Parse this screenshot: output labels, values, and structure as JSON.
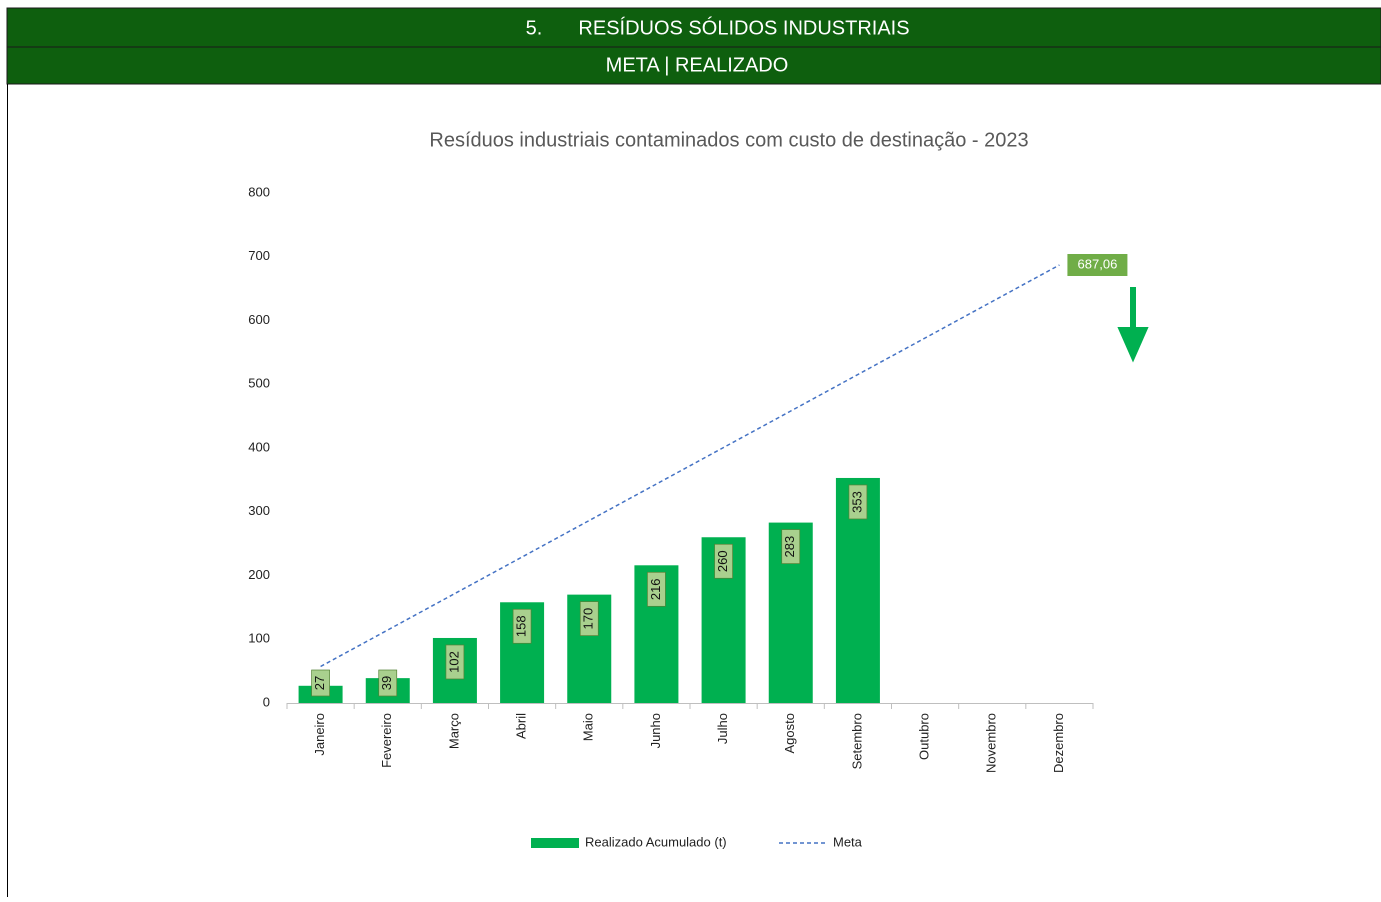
{
  "header": {
    "number": "5.",
    "title": "RESÍDUOS SÓLIDOS INDUSTRIAIS",
    "subtitle": "META | REALIZADO"
  },
  "chart_data": {
    "type": "bar",
    "title": "Resíduos industriais contaminados com custo de destinação - 2023",
    "categories": [
      "Janeiro",
      "Fevereiro",
      "Março",
      "Abril",
      "Maio",
      "Junho",
      "Julho",
      "Agosto",
      "Setembro",
      "Outubro",
      "Novembro",
      "Dezembro"
    ],
    "series": [
      {
        "name": "Realizado Acumulado (t)",
        "type": "bar",
        "color": "#00b050",
        "values": [
          27,
          39,
          102,
          158,
          170,
          216,
          260,
          283,
          353,
          null,
          null,
          null
        ]
      },
      {
        "name": "Meta",
        "type": "line",
        "color": "#4472c4",
        "values": [
          57.26,
          114.51,
          171.77,
          229.02,
          286.28,
          343.53,
          400.79,
          458.04,
          515.3,
          572.55,
          629.81,
          687.06
        ],
        "value_labels": [
          null,
          null,
          null,
          null,
          null,
          null,
          null,
          null,
          null,
          null,
          null,
          "687,06"
        ]
      }
    ],
    "ylim": [
      0,
      800
    ],
    "yticks": [
      0,
      100,
      200,
      300,
      400,
      500,
      600,
      700,
      800
    ],
    "grid": false,
    "legend": "bottom"
  }
}
